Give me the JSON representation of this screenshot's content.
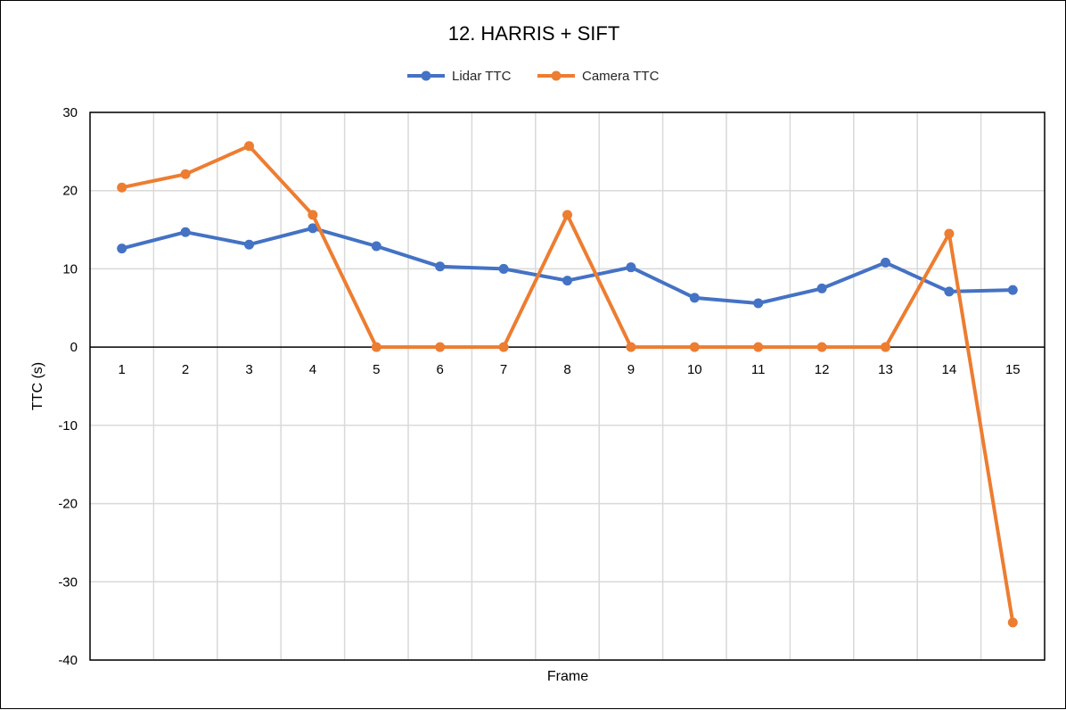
{
  "chart_data": {
    "type": "line",
    "title": "12. HARRIS + SIFT",
    "xlabel": "Frame",
    "ylabel": "TTC (s)",
    "categories": [
      "1",
      "2",
      "3",
      "4",
      "5",
      "6",
      "7",
      "8",
      "9",
      "10",
      "11",
      "12",
      "13",
      "14",
      "15"
    ],
    "ylim": [
      -40,
      30
    ],
    "yticks": [
      30,
      20,
      10,
      0,
      -10,
      -20,
      -30,
      -40
    ],
    "grid": true,
    "legend_position": "top",
    "series": [
      {
        "name": "Lidar TTC",
        "color": "#4472C4",
        "values": [
          12.6,
          14.7,
          13.1,
          15.2,
          12.9,
          10.3,
          10.0,
          8.5,
          10.2,
          6.3,
          5.6,
          7.5,
          10.8,
          7.1,
          7.3
        ]
      },
      {
        "name": "Camera TTC",
        "color": "#ED7D31",
        "values": [
          20.4,
          22.1,
          25.7,
          16.9,
          0,
          0,
          0,
          16.9,
          0,
          0,
          0,
          0,
          0,
          14.5,
          -35.2
        ]
      }
    ]
  }
}
